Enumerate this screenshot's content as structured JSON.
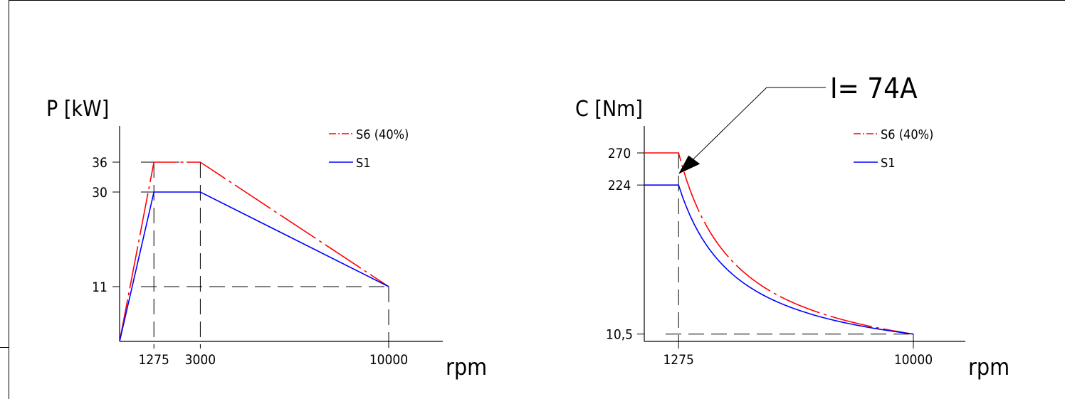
{
  "colors": {
    "s6": "#ff0000",
    "s1": "#0000ff",
    "axes": "#000000",
    "guides": "#000000"
  },
  "chart_data": [
    {
      "type": "line",
      "ylabel": "P [kW]",
      "xlabel": "rpm",
      "x_ticks": [
        "1275",
        "3000",
        "10000"
      ],
      "x_tick_values": [
        1275,
        3000,
        10000
      ],
      "y_ticks": [
        "36",
        "30",
        "11"
      ],
      "y_tick_values": [
        36,
        30,
        11
      ],
      "xlim": [
        0,
        12000
      ],
      "ylim": [
        0,
        48
      ],
      "legend_position": "top-right",
      "series": [
        {
          "name": "S6 (40%)",
          "color_key": "s6",
          "style": "dash-dot",
          "x": [
            0,
            1275,
            3000,
            10000
          ],
          "y": [
            0,
            36,
            36,
            11
          ]
        },
        {
          "name": "S1",
          "color_key": "s1",
          "style": "solid",
          "x": [
            0,
            1275,
            3000,
            10000
          ],
          "y": [
            0,
            30,
            30,
            11
          ]
        }
      ]
    },
    {
      "type": "line",
      "ylabel": "C [Nm]",
      "xlabel": "rpm",
      "x_ticks": [
        "1275",
        "10000"
      ],
      "x_tick_values": [
        1275,
        10000
      ],
      "y_ticks": [
        "270",
        "224",
        "10,5"
      ],
      "y_tick_values": [
        270,
        224,
        10.5
      ],
      "xlim": [
        0,
        12000
      ],
      "ylim": [
        0,
        365
      ],
      "legend_position": "top-right",
      "annotation": {
        "text": "I= 74A",
        "x": 1275,
        "y": 240
      },
      "series": [
        {
          "name": "S6 (40%)",
          "color_key": "s6",
          "style": "dash-dot",
          "x": [
            0,
            1275,
            10000
          ],
          "y": [
            270,
            270,
            10.5
          ],
          "curve_after_x": 1275
        },
        {
          "name": "S1",
          "color_key": "s1",
          "style": "solid",
          "x": [
            0,
            1275,
            10000
          ],
          "y": [
            224,
            224,
            10.5
          ],
          "curve_after_x": 1275
        }
      ]
    }
  ]
}
